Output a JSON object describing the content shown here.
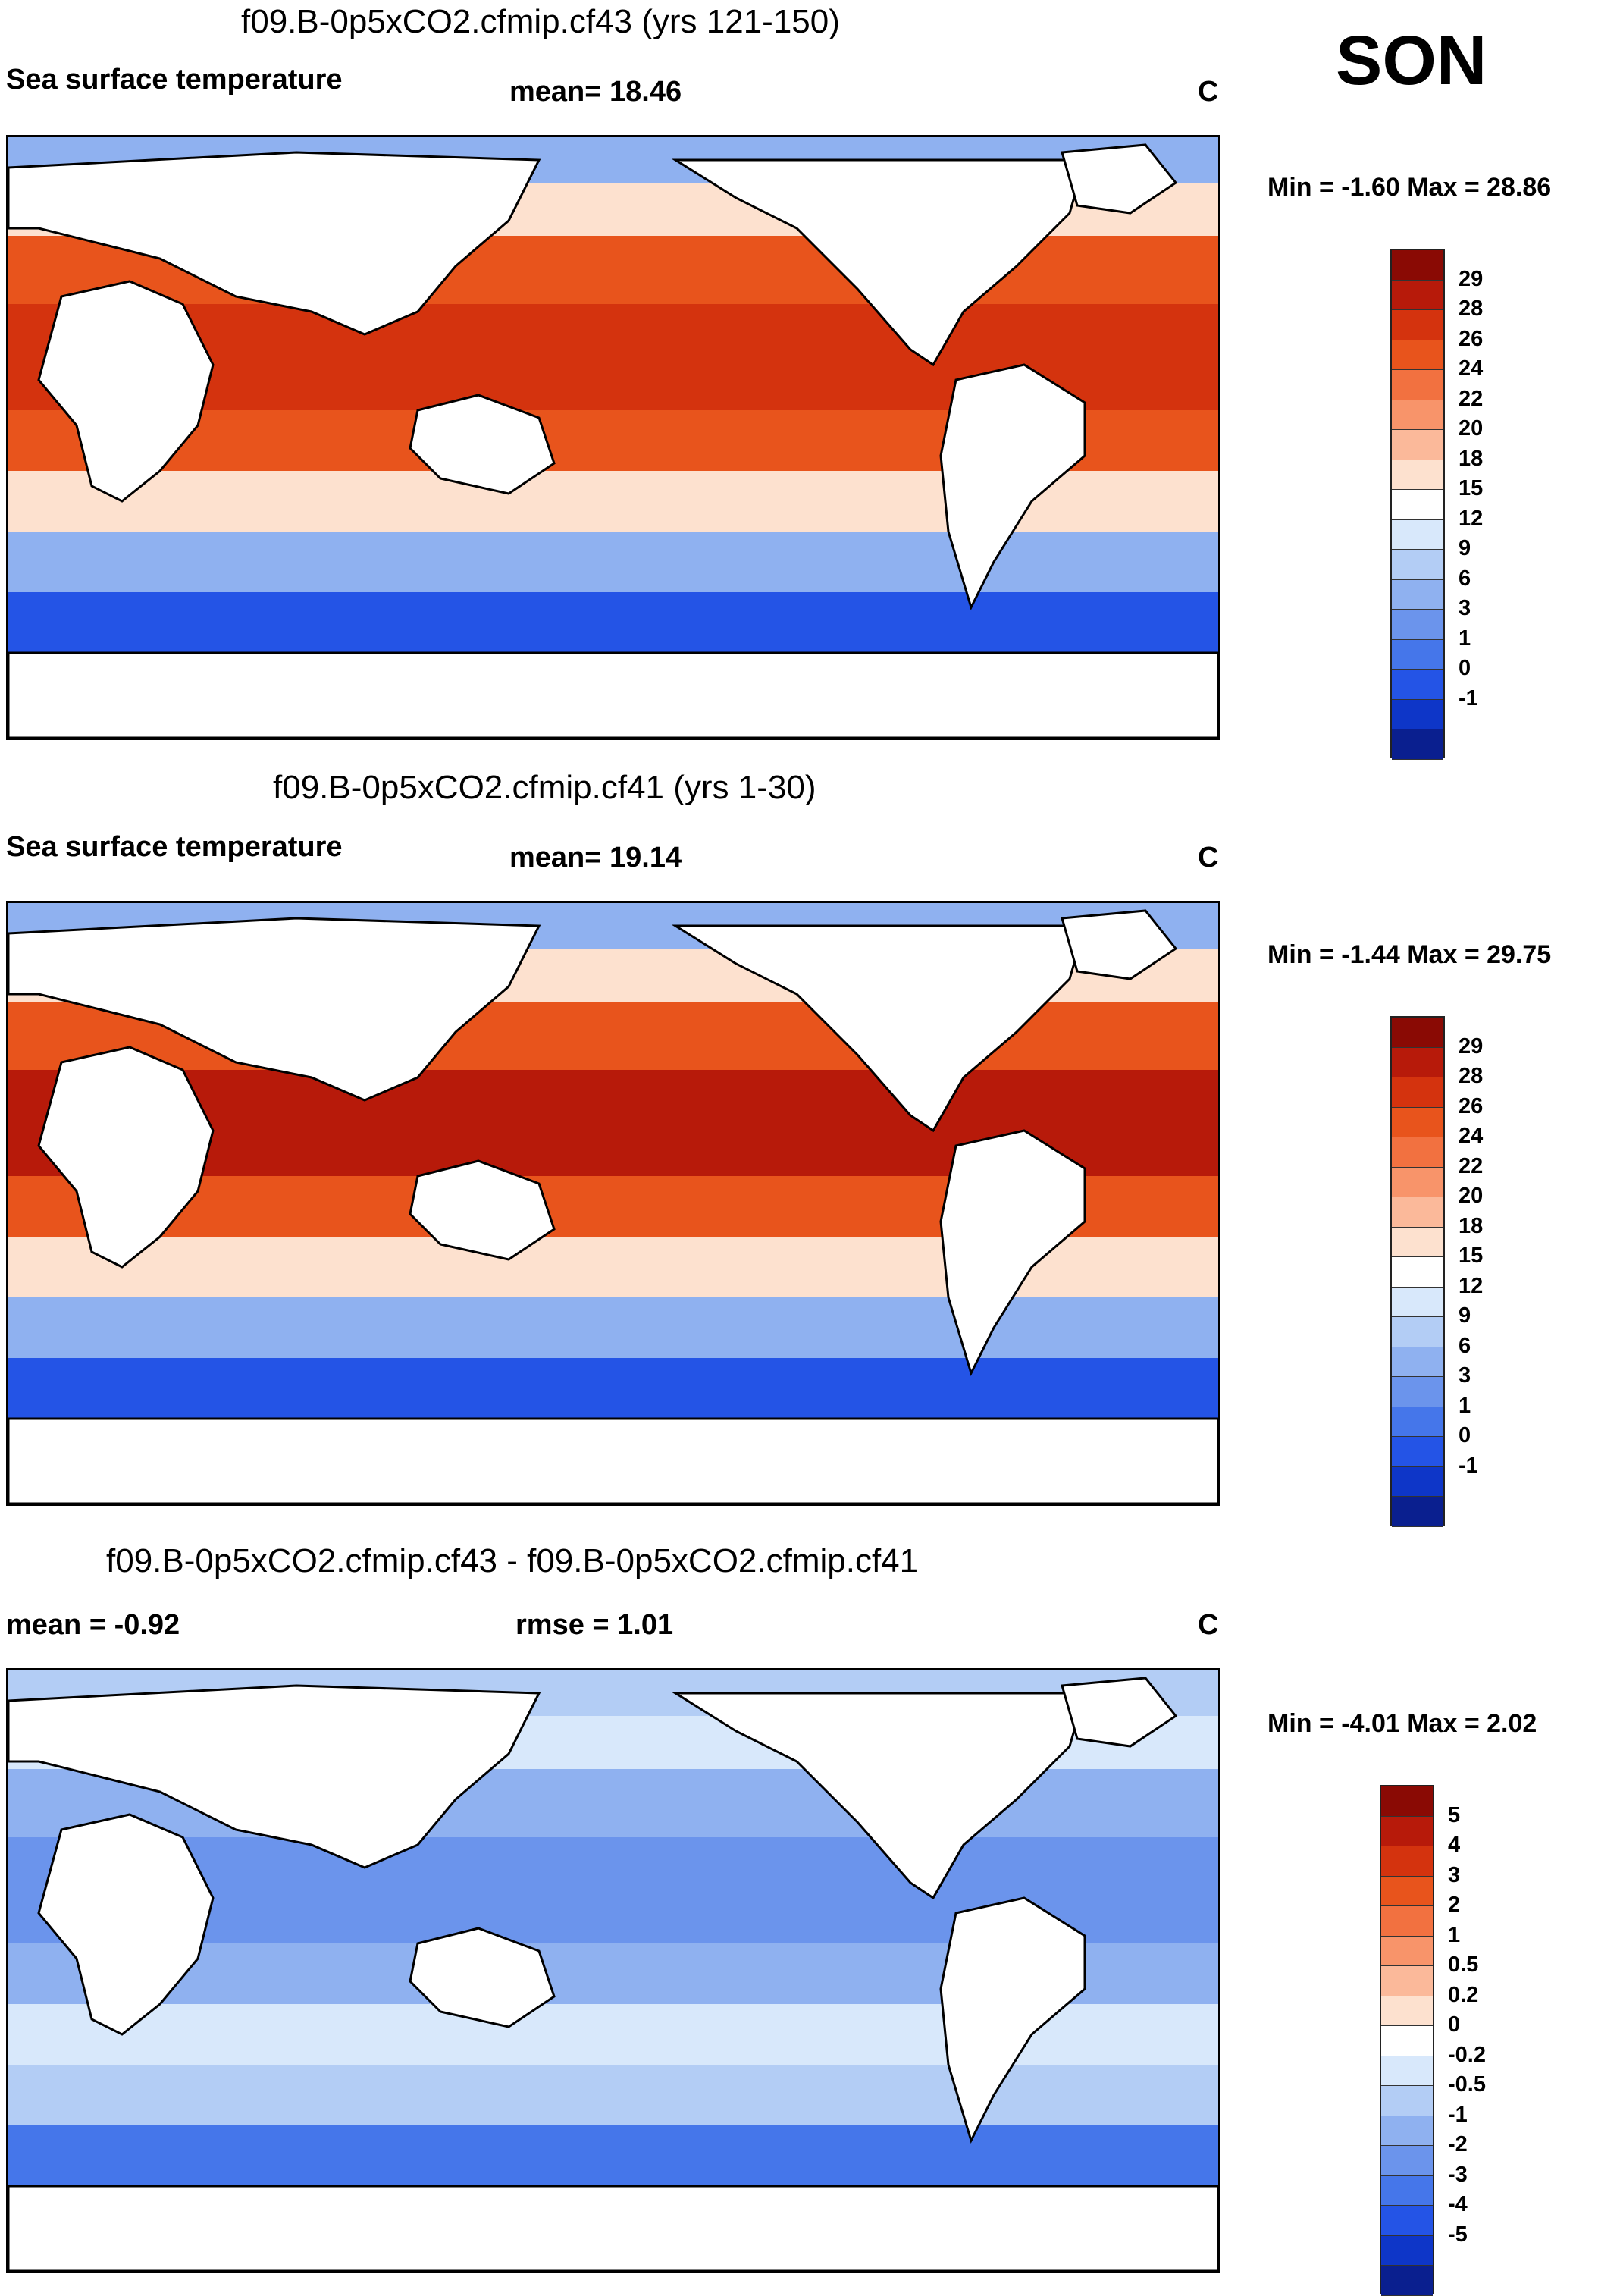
{
  "season": "SON",
  "panels": [
    {
      "title": "f09.B-0p5xCO2.cfmip.cf43 (yrs 121-150)",
      "left_label": "Sea surface temperature",
      "stat_label": "mean=  18.46",
      "unit": "C",
      "minmax": "Min =  -1.60 Max =  28.86",
      "colorbar": {
        "ticks": [
          "29",
          "28",
          "26",
          "24",
          "22",
          "20",
          "18",
          "15",
          "12",
          "9",
          "6",
          "3",
          "1",
          "0",
          "-1"
        ],
        "colors": [
          "#8a0a04",
          "#b71a0a",
          "#d4330e",
          "#e8541c",
          "#f27140",
          "#f8946a",
          "#fbb99a",
          "#fde1cf",
          "#ffffff",
          "#d8e8fb",
          "#b3cdf5",
          "#8fb1f0",
          "#6b94ec",
          "#4576ea",
          "#2454e6",
          "#0e36c8",
          "#0a1f8f"
        ]
      },
      "map_palette": {
        "warm": "#e8541c",
        "hot": "#d4330e",
        "cool": "#8fb1f0",
        "cold": "#2454e6",
        "pale": "#fde1cf"
      }
    },
    {
      "title": "f09.B-0p5xCO2.cfmip.cf41 (yrs 1-30)",
      "left_label": "Sea surface temperature",
      "stat_label": "mean=  19.14",
      "unit": "C",
      "minmax": "Min =  -1.44 Max =  29.75",
      "colorbar": {
        "ticks": [
          "29",
          "28",
          "26",
          "24",
          "22",
          "20",
          "18",
          "15",
          "12",
          "9",
          "6",
          "3",
          "1",
          "0",
          "-1"
        ],
        "colors": [
          "#8a0a04",
          "#b71a0a",
          "#d4330e",
          "#e8541c",
          "#f27140",
          "#f8946a",
          "#fbb99a",
          "#fde1cf",
          "#ffffff",
          "#d8e8fb",
          "#b3cdf5",
          "#8fb1f0",
          "#6b94ec",
          "#4576ea",
          "#2454e6",
          "#0e36c8",
          "#0a1f8f"
        ]
      },
      "map_palette": {
        "warm": "#e8541c",
        "hot": "#b71a0a",
        "cool": "#8fb1f0",
        "cold": "#2454e6",
        "pale": "#fde1cf"
      }
    },
    {
      "title": "f09.B-0p5xCO2.cfmip.cf43 - f09.B-0p5xCO2.cfmip.cf41",
      "left_label": "mean =  -0.92",
      "stat_label": "rmse =   1.01",
      "unit": "C",
      "minmax": "Min =  -4.01 Max =   2.02",
      "colorbar": {
        "ticks": [
          "5",
          "4",
          "3",
          "2",
          "1",
          "0.5",
          "0.2",
          "0",
          "-0.2",
          "-0.5",
          "-1",
          "-2",
          "-3",
          "-4",
          "-5"
        ],
        "colors": [
          "#8a0a04",
          "#b71a0a",
          "#d4330e",
          "#e8541c",
          "#f27140",
          "#f8946a",
          "#fbb99a",
          "#fde1cf",
          "#ffffff",
          "#d8e8fb",
          "#b3cdf5",
          "#8fb1f0",
          "#6b94ec",
          "#4576ea",
          "#2454e6",
          "#0e36c8",
          "#0a1f8f"
        ]
      },
      "map_palette": {
        "warm": "#8fb1f0",
        "hot": "#6b94ec",
        "cool": "#b3cdf5",
        "cold": "#4576ea",
        "pale": "#d8e8fb"
      }
    }
  ]
}
